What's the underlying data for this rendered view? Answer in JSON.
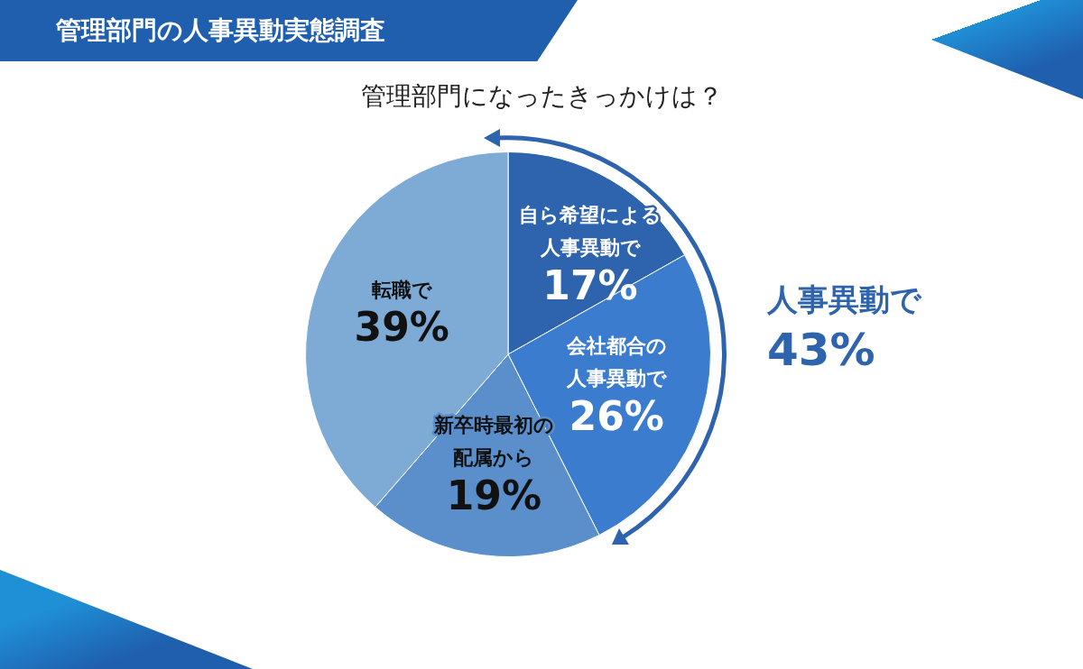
{
  "chart_data": {
    "type": "pie",
    "title": "管理部門の人事異動実態調査",
    "subtitle": "管理部門になったきっかけは？",
    "categories": [
      "自ら希望による人事異動で",
      "会社都合の人事異動で",
      "新卒時最初の配属から",
      "転職で"
    ],
    "values": [
      17,
      26,
      19,
      39
    ],
    "colors": [
      "#2e64ae",
      "#3b7ccf",
      "#5a8fcc",
      "#7eaad6"
    ],
    "value_labels": [
      "17%",
      "26%",
      "19%",
      "39%"
    ],
    "annotations": [
      "人事異動で\n43%"
    ],
    "legend": false
  }
}
